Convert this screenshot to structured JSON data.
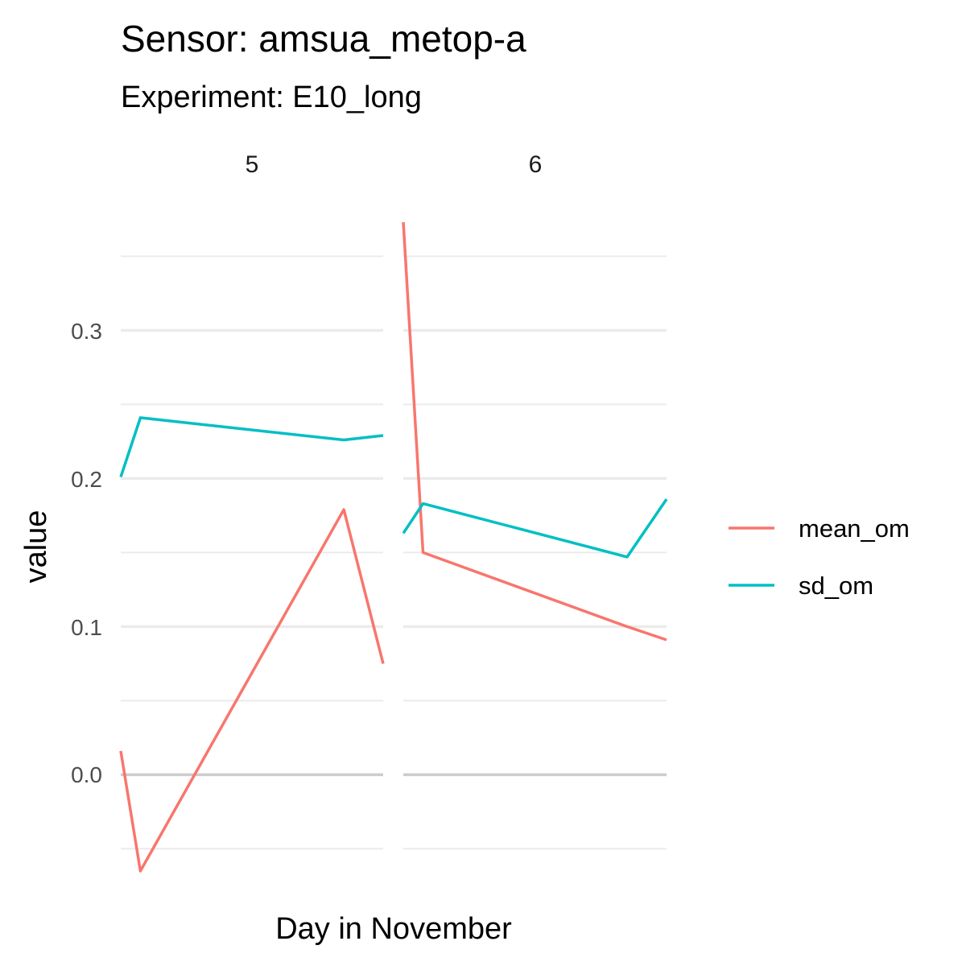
{
  "chart_data": {
    "type": "line",
    "title": "Sensor: amsua_metop-a",
    "subtitle": "Experiment: E10_long",
    "xlabel": "Day in November",
    "ylabel": "value",
    "ylim": [
      -0.065,
      0.373
    ],
    "y_ticks": [
      0.0,
      0.1,
      0.2,
      0.3
    ],
    "y_tick_labels": [
      "0.0",
      "0.1",
      "0.2",
      "0.3"
    ],
    "grid": true,
    "legend_position": "right",
    "facets": [
      {
        "label": "5",
        "series": [
          {
            "name": "mean_om",
            "points": [
              [
                0.0,
                0.016
              ],
              [
                0.075,
                -0.065
              ],
              [
                0.85,
                0.179
              ],
              [
                1.0,
                0.075
              ]
            ]
          },
          {
            "name": "sd_om",
            "points": [
              [
                0.0,
                0.201
              ],
              [
                0.075,
                0.241
              ],
              [
                0.85,
                0.226
              ],
              [
                1.0,
                0.229
              ]
            ]
          }
        ]
      },
      {
        "label": "6",
        "series": [
          {
            "name": "mean_om",
            "points": [
              [
                0.0,
                0.373
              ],
              [
                0.075,
                0.15
              ],
              [
                0.85,
                0.1
              ],
              [
                1.0,
                0.091
              ]
            ]
          },
          {
            "name": "sd_om",
            "points": [
              [
                0.0,
                0.163
              ],
              [
                0.075,
                0.183
              ],
              [
                0.85,
                0.147
              ],
              [
                1.0,
                0.186
              ]
            ]
          }
        ]
      }
    ],
    "legend": [
      {
        "name": "mean_om",
        "color": "#F8766D"
      },
      {
        "name": "sd_om",
        "color": "#00BFC4"
      }
    ]
  }
}
